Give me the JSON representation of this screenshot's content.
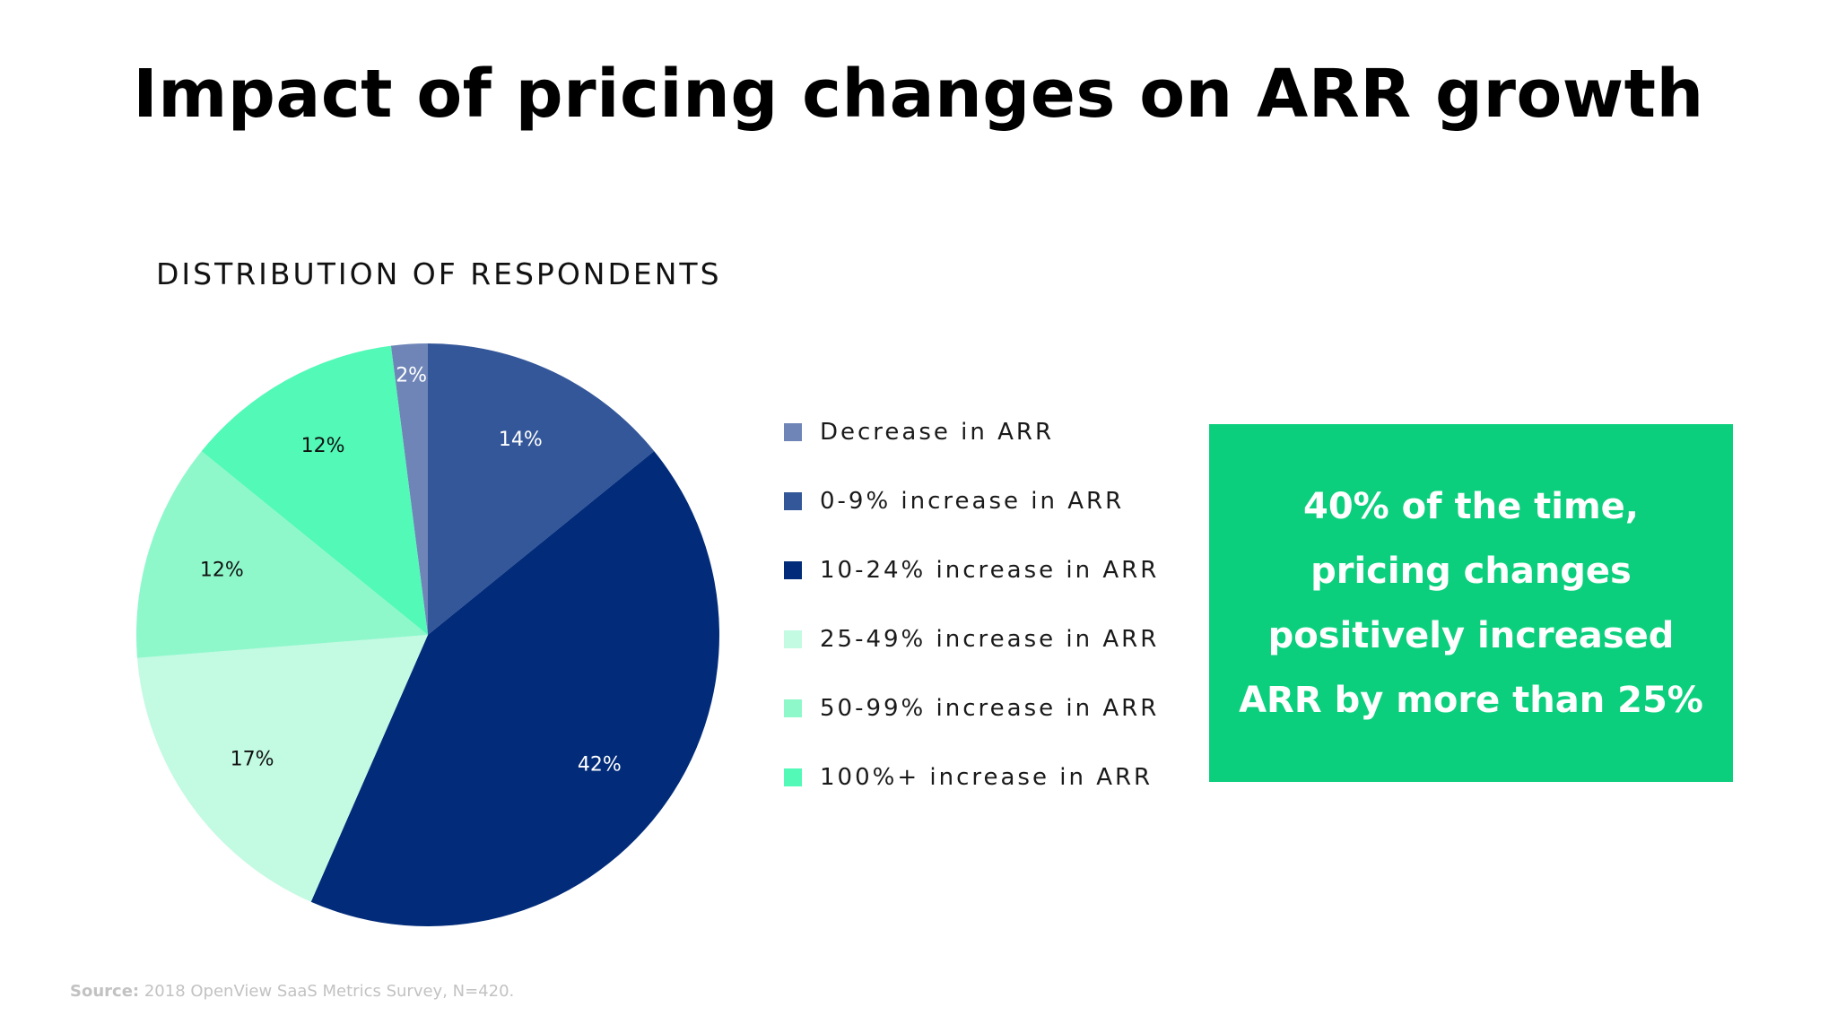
{
  "title": "Impact of pricing changes on ARR growth",
  "chart_heading": "DISTRIBUTION OF RESPONDENTS",
  "callout": {
    "lines": [
      "40% of the time,",
      "pricing changes",
      "positively increased",
      "ARR by more than 25%"
    ],
    "background": "#0ccf7d"
  },
  "source": {
    "label": "Source:",
    "text": "2018 OpenView SaaS Metrics Survey, N=420."
  },
  "chart_data": {
    "type": "pie",
    "title": "",
    "legend_position": "right",
    "slices": [
      {
        "label": "Decrease in ARR",
        "value": 2,
        "display": "2%",
        "color": "#6f85b8",
        "label_color": "#ffffff"
      },
      {
        "label": "0-9% increase in ARR",
        "value": 14,
        "display": "14%",
        "color": "#34579a",
        "label_color": "#ffffff"
      },
      {
        "label": "10-24% increase in ARR",
        "value": 42,
        "display": "42%",
        "color": "#022c7a",
        "label_color": "#ffffff"
      },
      {
        "label": "25-49% increase in ARR",
        "value": 17,
        "display": "17%",
        "color": "#c2fae2",
        "label_color": "#111111"
      },
      {
        "label": "50-99% increase in ARR",
        "value": 12,
        "display": "12%",
        "color": "#8ef8cb",
        "label_color": "#111111"
      },
      {
        "label": "100%+ increase in ARR",
        "value": 12,
        "display": "12%",
        "color": "#52f9b7",
        "label_color": "#111111"
      }
    ]
  }
}
